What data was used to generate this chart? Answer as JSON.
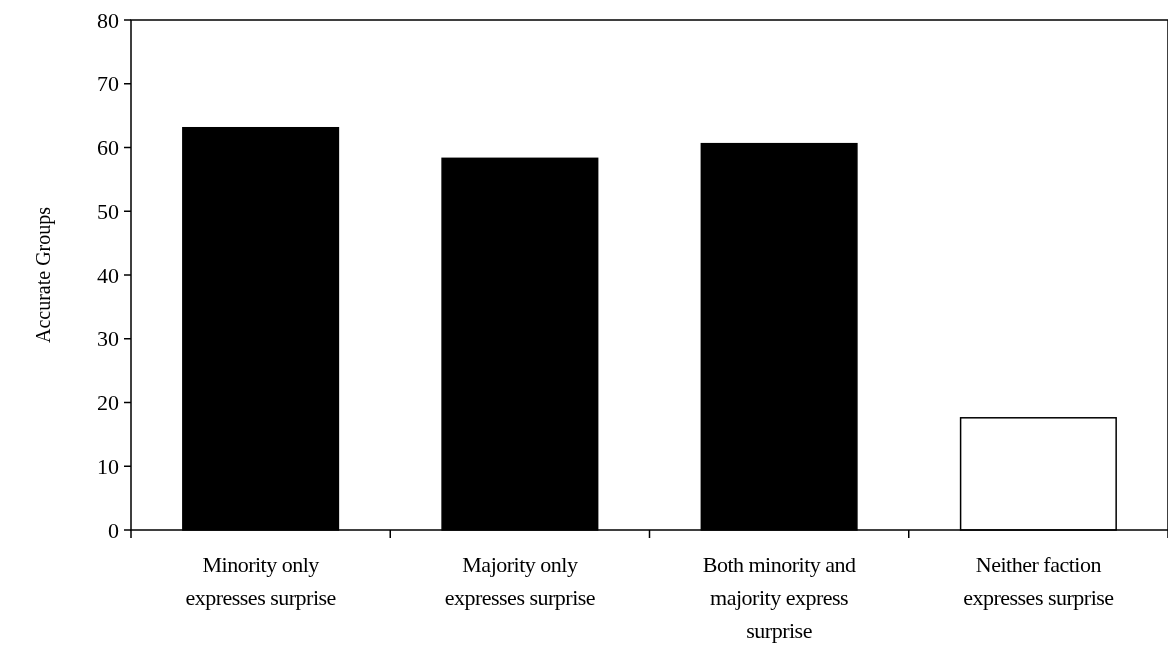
{
  "chart_data": {
    "type": "bar",
    "ylabel": "Accurate Groups",
    "categories": [
      "Minority only expresses surprise",
      "Majority only expresses surprise",
      "Both minority and majority express surprise",
      "Neither faction expresses surprise"
    ],
    "values": [
      63.1,
      58.3,
      60.6,
      17.6
    ],
    "colors": [
      "#000000",
      "#000000",
      "#000000",
      "#ffffff"
    ],
    "ylim": [
      0,
      80
    ],
    "yticks": [
      0,
      10,
      20,
      30,
      40,
      50,
      60,
      70,
      80
    ],
    "grid": false
  }
}
